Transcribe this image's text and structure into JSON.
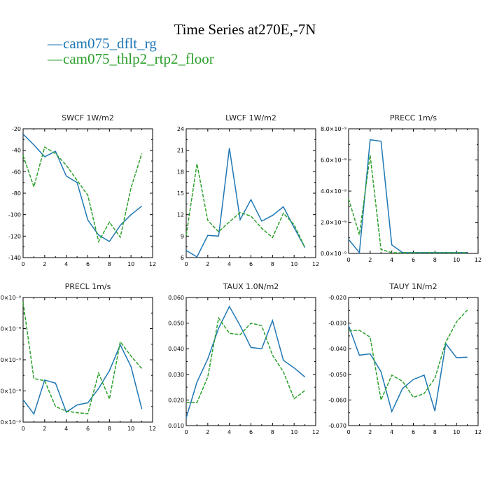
{
  "title": "Time Series at270E,-7N",
  "legend": [
    {
      "name": "cam075_dflt_rg",
      "color": "#1f77b4"
    },
    {
      "name": "cam075_thlp2_rtp2_floor",
      "color": "#2ca02c"
    }
  ],
  "chart_data": [
    {
      "type": "line",
      "title": "SWCF 1W/m2",
      "xlim": [
        0,
        12
      ],
      "x_ticks": [
        "0",
        "2",
        "4",
        "6",
        "8",
        "10",
        "12"
      ],
      "ylim": [
        -140,
        -20
      ],
      "y_ticks": [
        "-140",
        "-120",
        "-100",
        "-80",
        "-60",
        "-40",
        "-20"
      ],
      "x": [
        0,
        1,
        2,
        3,
        4,
        5,
        6,
        7,
        8,
        9,
        10,
        11
      ],
      "series": [
        {
          "name": "cam075_dflt_rg",
          "values": [
            -25,
            -35,
            -46,
            -41,
            -64,
            -70,
            -105,
            -119,
            -125,
            -110,
            -100,
            -92
          ]
        },
        {
          "name": "cam075_thlp2_rtp2_floor",
          "values": [
            -45,
            -74,
            -37,
            -43,
            -54,
            -68,
            -82,
            -125,
            -107,
            -121,
            -75,
            -43
          ]
        }
      ]
    },
    {
      "type": "line",
      "title": "LWCF 1W/m2",
      "xlim": [
        0,
        12
      ],
      "x_ticks": [
        "0",
        "2",
        "4",
        "6",
        "8",
        "10",
        "12"
      ],
      "ylim": [
        6,
        24
      ],
      "y_ticks": [
        "6",
        "9",
        "12",
        "15",
        "18",
        "21",
        "24"
      ],
      "x": [
        0,
        1,
        2,
        3,
        4,
        5,
        6,
        7,
        8,
        9,
        10,
        11
      ],
      "series": [
        {
          "name": "cam075_dflt_rg",
          "values": [
            7.0,
            6.1,
            9.1,
            9.0,
            21.3,
            11.3,
            14.1,
            11.1,
            11.9,
            13.1,
            10.2,
            7.4
          ]
        },
        {
          "name": "cam075_thlp2_rtp2_floor",
          "values": [
            9.1,
            19.1,
            11.2,
            9.6,
            11.0,
            12.3,
            11.8,
            10.1,
            8.8,
            12.2,
            10.6,
            7.4
          ]
        }
      ]
    },
    {
      "type": "line",
      "title": "PRECC 1m/s",
      "xlim": [
        0,
        12
      ],
      "x_ticks": [
        "0",
        "2",
        "4",
        "6",
        "8",
        "10",
        "12"
      ],
      "ylim": [
        0,
        8
      ],
      "y_ticks": [
        "0.0×10⁻⁹",
        "2.0×10⁻⁹",
        "4.0×10⁻⁹",
        "6.0×10⁻⁹",
        "8.0×10⁻⁹"
      ],
      "x": [
        0,
        1,
        2,
        3,
        4,
        5,
        6,
        7,
        8,
        9,
        10,
        11
      ],
      "series": [
        {
          "name": "cam075_dflt_rg",
          "values": [
            0.9,
            0.05,
            7.3,
            7.2,
            0.55,
            0.05,
            0.05,
            0.05,
            0.05,
            0.05,
            0.05,
            0.05
          ]
        },
        {
          "name": "cam075_thlp2_rtp2_floor",
          "values": [
            3.5,
            1.2,
            6.3,
            0.25,
            0.05,
            0.03,
            0.03,
            0.03,
            0.03,
            0.03,
            0.03,
            0.03
          ]
        }
      ]
    },
    {
      "type": "line",
      "title": "PRECL 1m/s",
      "xlim": [
        0,
        12
      ],
      "x_ticks": [
        "0",
        "2",
        "4",
        "6",
        "8",
        "10",
        "12"
      ],
      "ylim": [
        0,
        4
      ],
      "y_ticks": [
        ".0×10⁻⁹",
        ".0×10⁻⁹",
        ".0×10⁻⁹",
        ".0×10⁻⁹",
        ".0×10⁻⁹"
      ],
      "x": [
        0,
        1,
        2,
        3,
        4,
        5,
        6,
        7,
        8,
        9,
        10,
        11
      ],
      "series": [
        {
          "name": "cam075_dflt_rg",
          "values": [
            0.72,
            0.26,
            1.35,
            1.25,
            0.32,
            0.55,
            0.62,
            1.08,
            1.65,
            2.48,
            1.78,
            0.42
          ]
        },
        {
          "name": "cam075_thlp2_rtp2_floor",
          "values": [
            3.85,
            1.4,
            1.33,
            0.5,
            0.35,
            0.3,
            0.27,
            1.57,
            0.74,
            2.58,
            2.12,
            1.72
          ]
        }
      ]
    },
    {
      "type": "line",
      "title": "TAUX 1.0N/m2",
      "xlim": [
        0,
        12
      ],
      "x_ticks": [
        "0",
        "2",
        "4",
        "6",
        "8",
        "10",
        "12"
      ],
      "ylim": [
        0.01,
        0.06
      ],
      "y_ticks": [
        "0.010",
        "0.020",
        "0.030",
        "0.040",
        "0.050",
        "0.060"
      ],
      "x": [
        0,
        1,
        2,
        3,
        4,
        5,
        6,
        7,
        8,
        9,
        10,
        11
      ],
      "series": [
        {
          "name": "cam075_dflt_rg",
          "values": [
            0.013,
            0.027,
            0.036,
            0.048,
            0.0565,
            0.049,
            0.0405,
            0.04,
            0.051,
            0.0355,
            0.0325,
            0.029
          ]
        },
        {
          "name": "cam075_thlp2_rtp2_floor",
          "values": [
            0.019,
            0.019,
            0.029,
            0.052,
            0.046,
            0.0455,
            0.05,
            0.049,
            0.0375,
            0.031,
            0.0205,
            0.0237
          ]
        }
      ]
    },
    {
      "type": "line",
      "title": "TAUY 1N/m2",
      "xlim": [
        0,
        12
      ],
      "x_ticks": [
        "0",
        "2",
        "4",
        "6",
        "8",
        "10",
        "12"
      ],
      "ylim": [
        -0.07,
        -0.02
      ],
      "y_ticks": [
        "-0.070",
        "-0.060",
        "-0.050",
        "-0.040",
        "-0.030",
        "-0.020"
      ],
      "x": [
        0,
        1,
        2,
        3,
        4,
        5,
        6,
        7,
        8,
        9,
        10,
        11
      ],
      "series": [
        {
          "name": "cam075_dflt_rg",
          "values": [
            -0.031,
            -0.0425,
            -0.042,
            -0.049,
            -0.0645,
            -0.0555,
            -0.052,
            -0.0503,
            -0.0643,
            -0.038,
            -0.0435,
            -0.0433
          ]
        },
        {
          "name": "cam075_thlp2_rtp2_floor",
          "values": [
            -0.033,
            -0.0328,
            -0.0355,
            -0.06,
            -0.0503,
            -0.0527,
            -0.059,
            -0.0575,
            -0.0515,
            -0.0375,
            -0.0295,
            -0.0249
          ]
        }
      ]
    }
  ]
}
